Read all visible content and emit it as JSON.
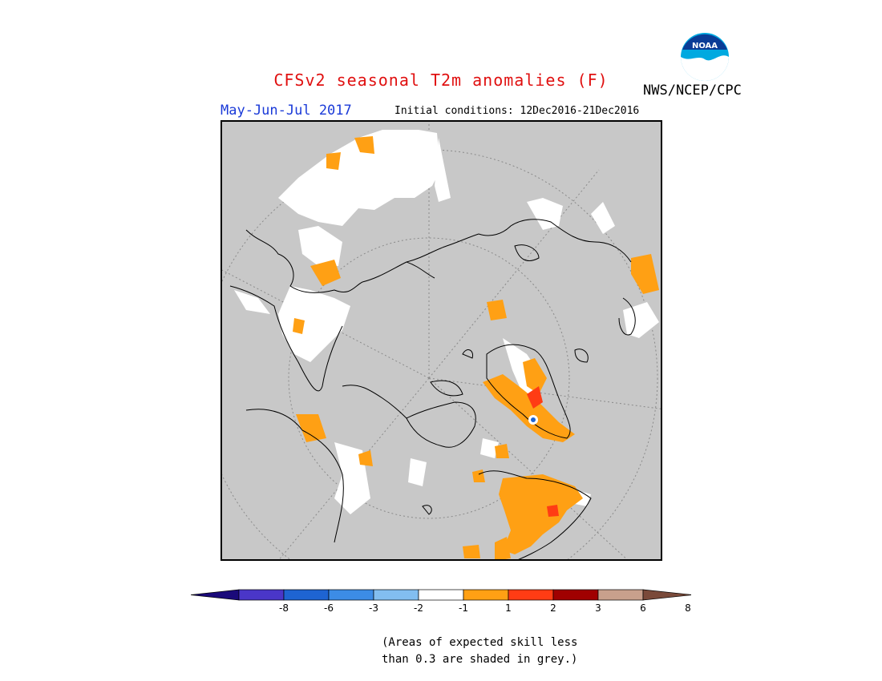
{
  "header": {
    "title": "CFSv2 seasonal T2m anomalies (F)",
    "season": "May-Jun-Jul 2017",
    "initial_conditions": "Initial conditions: 12Dec2016-21Dec2016",
    "agency": "NWS/NCEP/CPC",
    "logo_text": "NOAA"
  },
  "map": {
    "projection": "north-polar-stereographic",
    "grey_shading_meaning": "skill < 0.3"
  },
  "colorbar": {
    "ticks": [
      "-8",
      "-6",
      "-3",
      "-2",
      "-1",
      "1",
      "2",
      "3",
      "6",
      "8"
    ],
    "colors": [
      "#1a0a7a",
      "#4a36c8",
      "#1e64d2",
      "#3c8ce6",
      "#82bef0",
      "#ffffff",
      "#ffa014",
      "#ff3c14",
      "#a00000",
      "#c8a08c",
      "#7a4a3a"
    ]
  },
  "footnote": {
    "line1": "(Areas of expected skill less",
    "line2": "than 0.3 are shaded in grey.)"
  }
}
